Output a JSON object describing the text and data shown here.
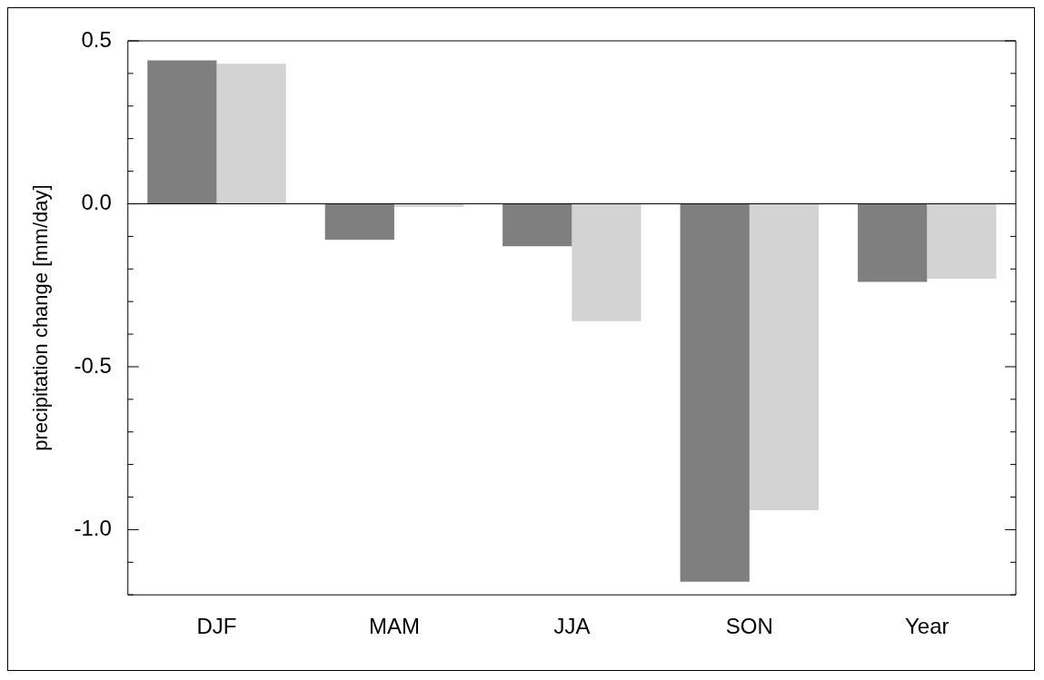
{
  "chart_data": {
    "type": "bar",
    "ylabel": "precipitation change [mm/day]",
    "categories": [
      "DJF",
      "MAM",
      "JJA",
      "SON",
      "Year"
    ],
    "series": [
      {
        "color": "#7f7f7f",
        "values": [
          0.44,
          -0.11,
          -0.13,
          -1.16,
          -0.24
        ]
      },
      {
        "color": "#d3d3d3",
        "values": [
          0.43,
          -0.01,
          -0.36,
          -0.94,
          -0.23
        ]
      }
    ],
    "ylim": [
      -1.2,
      0.5
    ],
    "yticks": [
      {
        "value": -1.2,
        "label": null
      },
      {
        "value": -1.1,
        "label": null
      },
      {
        "value": -1.0,
        "label": "-1.0"
      },
      {
        "value": -0.9,
        "label": null
      },
      {
        "value": -0.8,
        "label": null
      },
      {
        "value": -0.7,
        "label": null
      },
      {
        "value": -0.6,
        "label": null
      },
      {
        "value": -0.5,
        "label": "-0.5"
      },
      {
        "value": -0.4,
        "label": null
      },
      {
        "value": -0.3,
        "label": null
      },
      {
        "value": -0.2,
        "label": null
      },
      {
        "value": -0.1,
        "label": null
      },
      {
        "value": 0,
        "label": "0.0"
      },
      {
        "value": 0.1,
        "label": null
      },
      {
        "value": 0.2,
        "label": null
      },
      {
        "value": 0.3,
        "label": null
      },
      {
        "value": 0.4,
        "label": null
      },
      {
        "value": 0.5,
        "label": "0.5"
      }
    ],
    "ref_lines": [
      {
        "axis": "y",
        "value": 0,
        "color": "#000000"
      }
    ],
    "grid": false,
    "legend": false
  }
}
